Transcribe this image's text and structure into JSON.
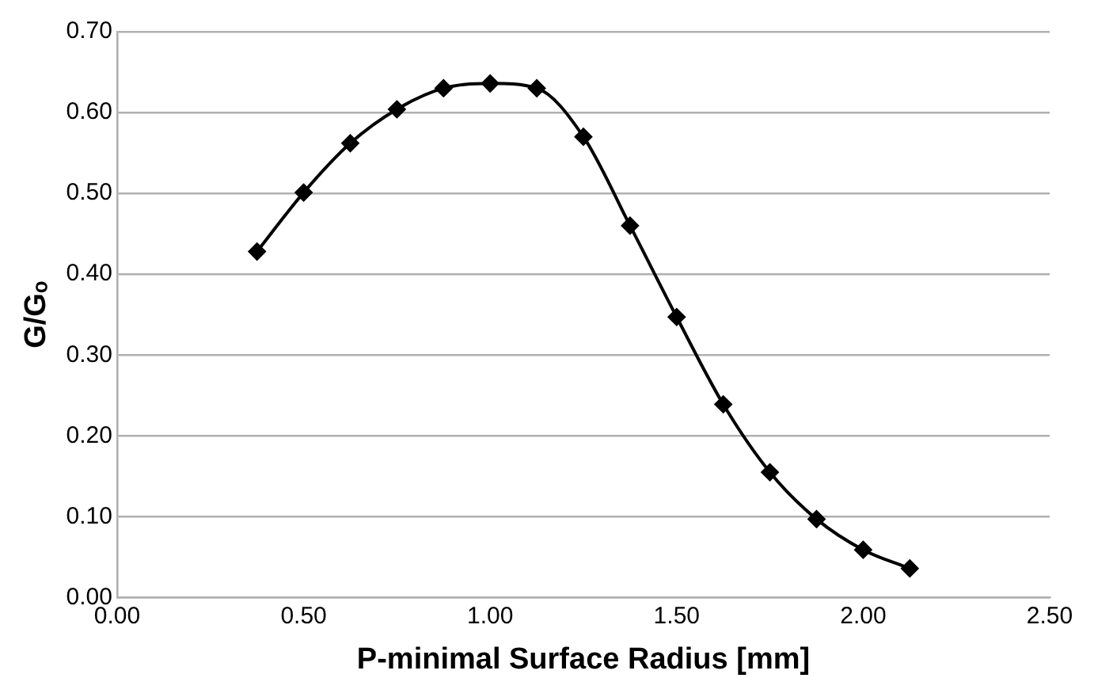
{
  "chart_data": {
    "type": "line",
    "xlabel": "P-minimal Surface Radius [mm]",
    "ylabel": "G/Gₒ",
    "x": [
      0.375,
      0.5,
      0.625,
      0.75,
      0.875,
      1.0,
      1.125,
      1.25,
      1.375,
      1.5,
      1.625,
      1.75,
      1.875,
      2.0,
      2.125
    ],
    "series": [
      {
        "color": "#000000",
        "values": [
          0.428,
          0.501,
          0.562,
          0.604,
          0.63,
          0.636,
          0.63,
          0.57,
          0.46,
          0.347,
          0.239,
          0.155,
          0.097,
          0.059,
          0.036
        ]
      }
    ],
    "xlim": [
      0,
      2.5
    ],
    "xticks": [
      {
        "value": 0,
        "label": "0.00"
      },
      {
        "value": 0.5,
        "label": "0.50"
      },
      {
        "value": 1,
        "label": "1.00"
      },
      {
        "value": 1.5,
        "label": "1.50"
      },
      {
        "value": 2,
        "label": "2.00"
      },
      {
        "value": 2.5,
        "label": "2.50"
      }
    ],
    "ylim": [
      0,
      0.7
    ],
    "yticks": [
      {
        "value": 0,
        "label": "0.00"
      },
      {
        "value": 0.1,
        "label": "0.10"
      },
      {
        "value": 0.2,
        "label": "0.20"
      },
      {
        "value": 0.3,
        "label": "0.30"
      },
      {
        "value": 0.4,
        "label": "0.40"
      },
      {
        "value": 0.5,
        "label": "0.50"
      },
      {
        "value": 0.6,
        "label": "0.60"
      },
      {
        "value": 0.7,
        "label": "0.70"
      }
    ],
    "grid": "y",
    "legend": false,
    "marker": "diamond",
    "line_style": "solid"
  }
}
